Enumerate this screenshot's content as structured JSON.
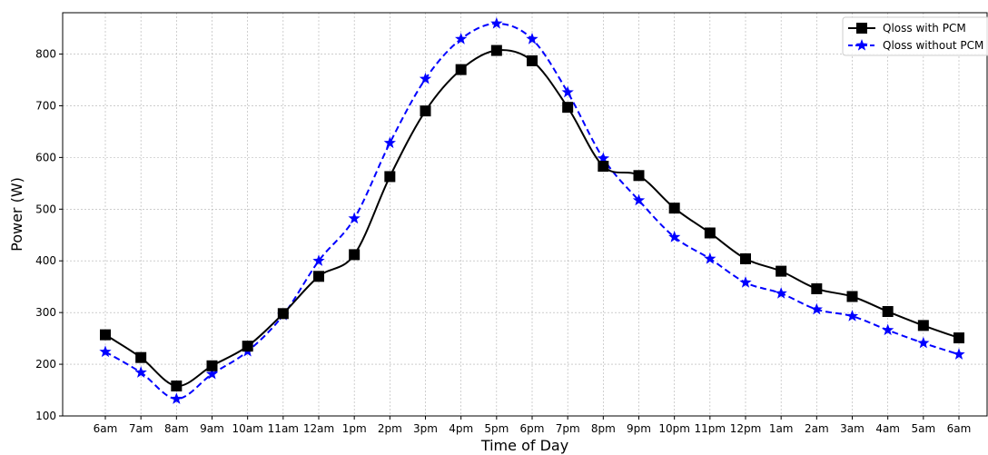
{
  "chart_data": {
    "type": "line",
    "xlabel": "Time of Day",
    "ylabel": "Power (W)",
    "categories": [
      "6am",
      "7am",
      "8am",
      "9am",
      "10am",
      "11am",
      "12am",
      "1pm",
      "2pm",
      "3pm",
      "4pm",
      "5pm",
      "6pm",
      "7pm",
      "8pm",
      "9pm",
      "10pm",
      "11pm",
      "12pm",
      "1am",
      "2am",
      "3am",
      "4am",
      "5am",
      "6am"
    ],
    "yticks": [
      100,
      200,
      300,
      400,
      500,
      600,
      700,
      800
    ],
    "ylim": [
      100,
      880
    ],
    "grid": true,
    "legend_position": "top-right",
    "series": [
      {
        "name": "Qloss with PCM",
        "color": "#000000",
        "marker": "square",
        "linestyle": "solid",
        "values": [
          257,
          213,
          158,
          197,
          235,
          298,
          370,
          412,
          563,
          690,
          770,
          807,
          787,
          697,
          583,
          565,
          502,
          454,
          404,
          380,
          346,
          331,
          302,
          275,
          251
        ]
      },
      {
        "name": "Qloss without PCM",
        "color": "#0000ff",
        "marker": "star",
        "linestyle": "dashed",
        "values": [
          224,
          184,
          133,
          181,
          225,
          295,
          400,
          482,
          628,
          752,
          829,
          859,
          829,
          726,
          598,
          517,
          446,
          404,
          358,
          337,
          306,
          293,
          266,
          241,
          219
        ]
      }
    ]
  }
}
